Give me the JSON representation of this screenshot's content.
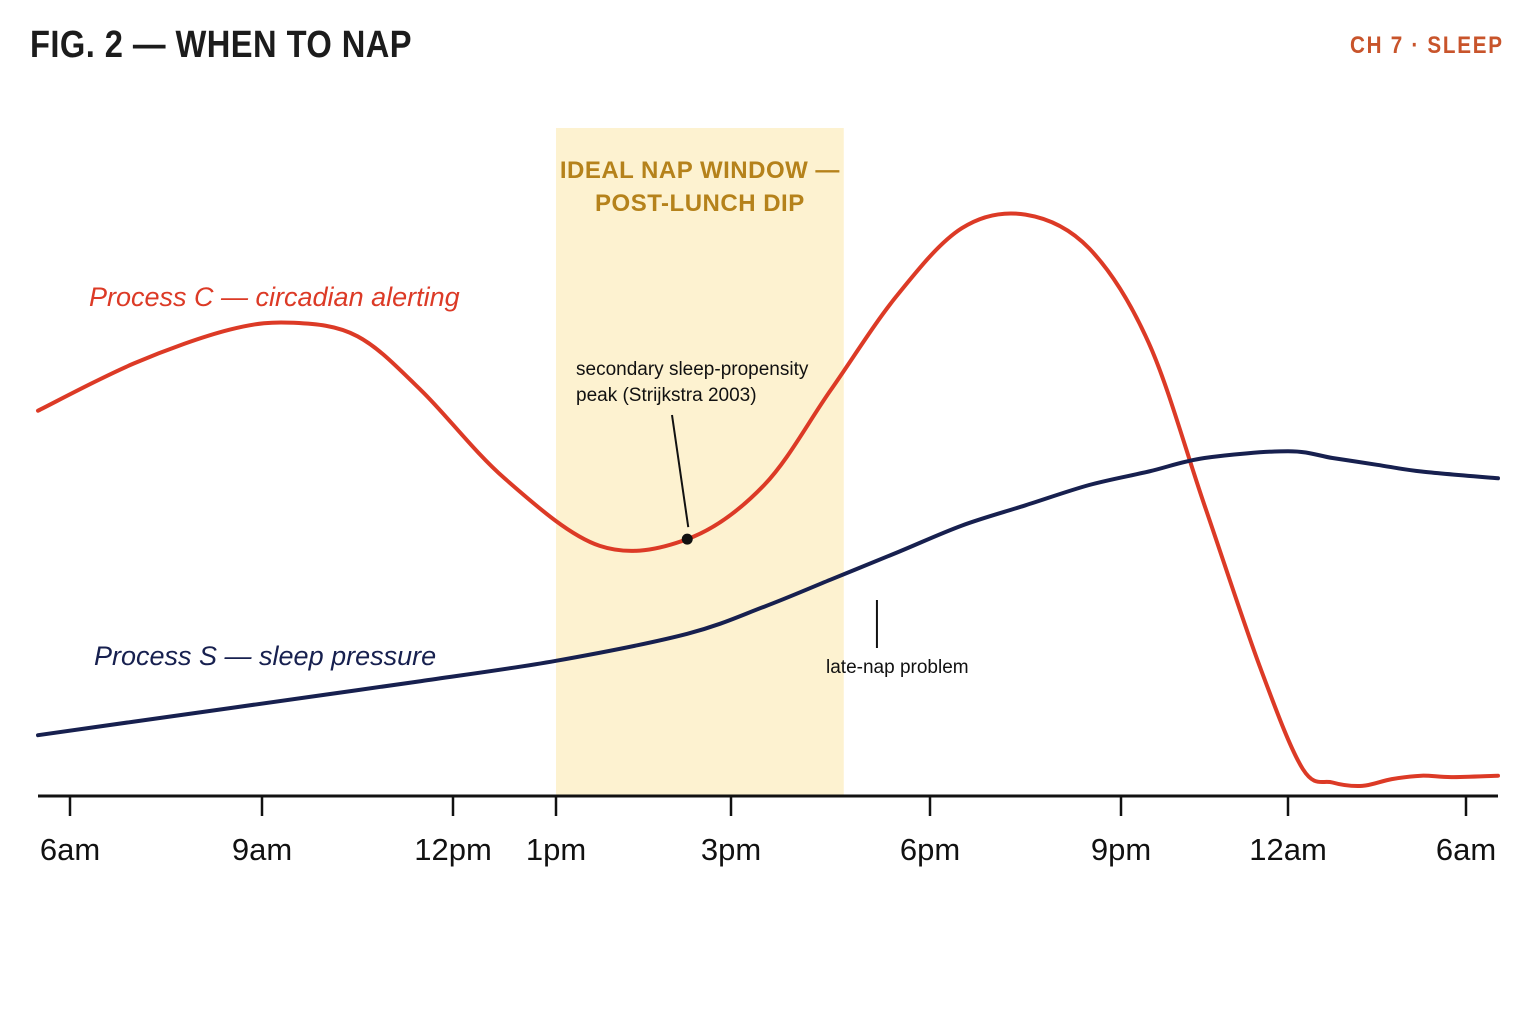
{
  "header": {
    "title": "FIG. 2 — WHEN TO NAP",
    "chapter": "CH 7 · SLEEP"
  },
  "colors": {
    "process_c": "#dc3a26",
    "process_s": "#17204f",
    "nap_window_fill": "#fdf2d0",
    "nap_window_text": "#b5821b",
    "chapter_tag": "#c8542b",
    "axis": "#111111"
  },
  "chart_data": {
    "type": "line",
    "title": "FIG. 2 — WHEN TO NAP",
    "xlabel": "",
    "ylabel": "",
    "x_unit": "clock hours (0 = midnight, 24+ = next day)",
    "xlim": [
      5.5,
      30.5
    ],
    "ylim": [
      0,
      1
    ],
    "grid": false,
    "ticks": [
      {
        "x": 6,
        "label": "6am"
      },
      {
        "x": 9,
        "label": "9am"
      },
      {
        "x": 12,
        "label": "12pm"
      },
      {
        "x": 13,
        "label": "1pm"
      },
      {
        "x": 15,
        "label": "3pm"
      },
      {
        "x": 18,
        "label": "6pm"
      },
      {
        "x": 21,
        "label": "9pm"
      },
      {
        "x": 24,
        "label": "12am"
      },
      {
        "x": 30,
        "label": "6am"
      }
    ],
    "series": [
      {
        "name": "Process C — circadian alerting",
        "x": [
          5.5,
          7,
          8.5,
          9.5,
          10.5,
          11.5,
          12.5,
          13.5,
          14.5,
          15.5,
          16.5,
          17.5,
          18.5,
          19.5,
          20.5,
          21.5,
          22.5,
          23.5,
          24.5,
          25.5,
          26.5,
          27.5,
          28.5,
          29.5,
          30.5
        ],
        "y": [
          0.57,
          0.64,
          0.69,
          0.7,
          0.68,
          0.6,
          0.47,
          0.37,
          0.38,
          0.46,
          0.6,
          0.74,
          0.84,
          0.86,
          0.81,
          0.67,
          0.43,
          0.19,
          0.04,
          0.02,
          0.015,
          0.025,
          0.03,
          0.028,
          0.03
        ],
        "color": "#dc3a26"
      },
      {
        "name": "Process S — sleep pressure",
        "x": [
          5.5,
          7,
          8.5,
          10,
          11.5,
          13,
          14.5,
          15.5,
          16.5,
          17.5,
          18.5,
          19.5,
          20.5,
          21.5,
          22.5,
          24,
          25.5,
          27,
          28.5,
          30.5
        ],
        "y": [
          0.09,
          0.11,
          0.13,
          0.15,
          0.17,
          0.2,
          0.24,
          0.28,
          0.32,
          0.36,
          0.4,
          0.43,
          0.46,
          0.48,
          0.5,
          0.51,
          0.5,
          0.49,
          0.48,
          0.47
        ],
        "color": "#17204f"
      }
    ],
    "highlight_band": {
      "x_start": 13,
      "x_end": 16.7,
      "label_lines": [
        "IDEAL NAP WINDOW —",
        "POST-LUNCH DIP"
      ]
    },
    "annotations": [
      {
        "id": "secondary-peak",
        "lines": [
          "secondary sleep-propensity",
          "peak (Strijkstra 2003)"
        ],
        "x": 14.5,
        "y": 0.38,
        "marker": true
      },
      {
        "id": "late-nap",
        "lines": [
          "late-nap problem"
        ],
        "x": 17.2,
        "y": 0.3
      }
    ]
  }
}
